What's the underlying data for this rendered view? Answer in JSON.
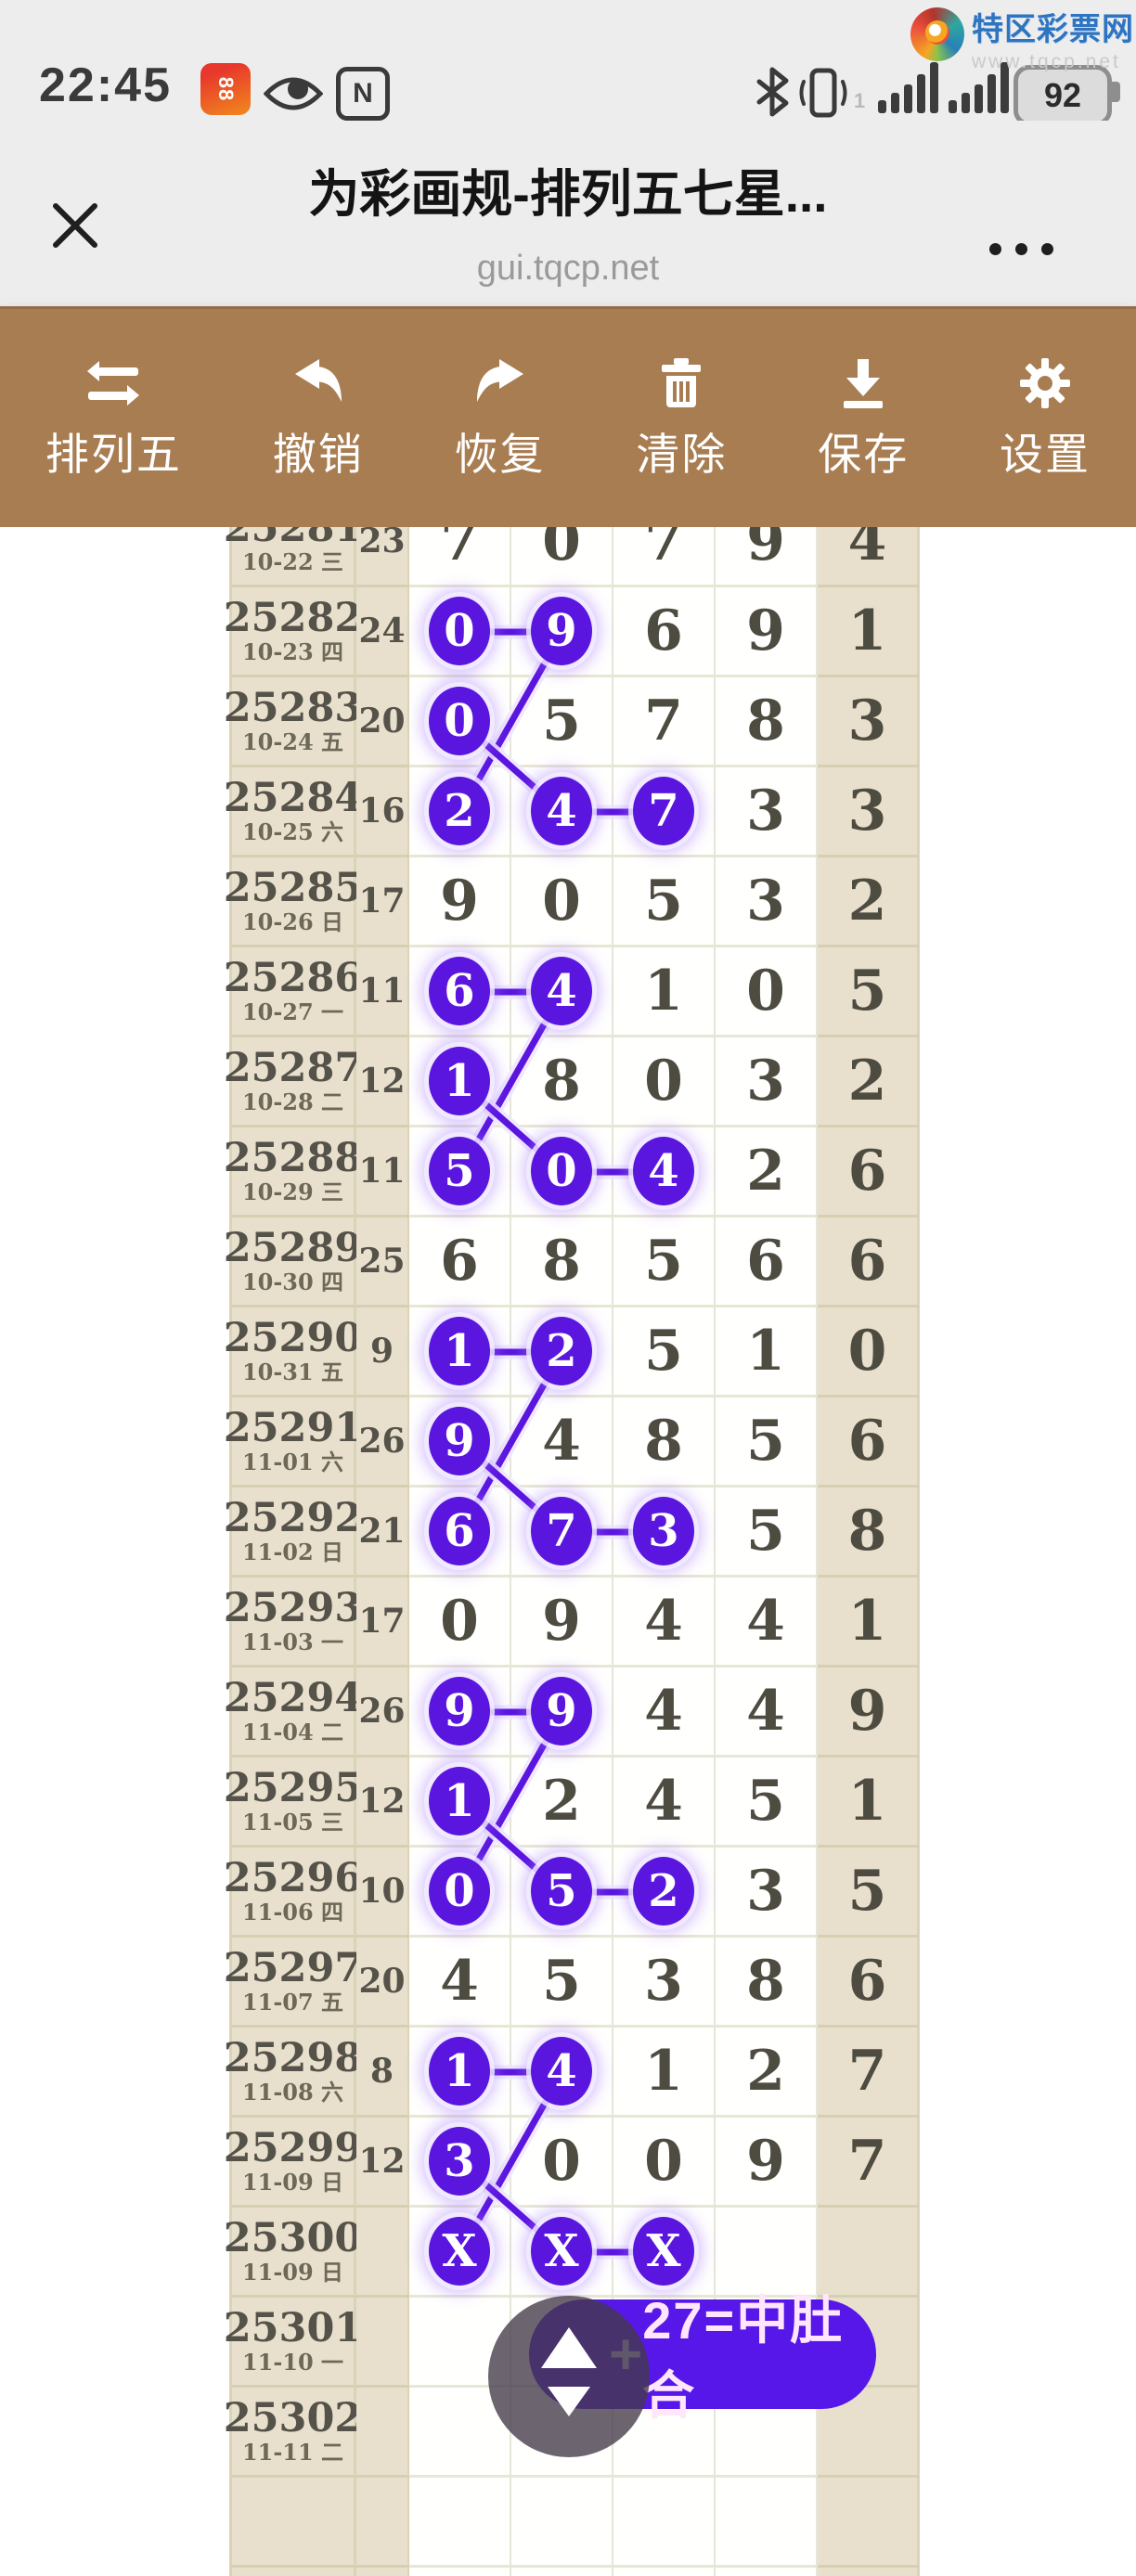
{
  "status_bar": {
    "time": "22:45",
    "battery_percent": "92",
    "sim_hint": "1",
    "nfc_label": "N",
    "app_badge_label": "88"
  },
  "watermark": {
    "site_name": "特区彩票网",
    "site_url": "www.tqcp.net"
  },
  "title_bar": {
    "title": "为彩画规-排列五七星...",
    "domain": "gui.tqcp.net"
  },
  "toolbar": {
    "items": [
      {
        "label": "排列五",
        "icon": "swap-icon"
      },
      {
        "label": "撤销",
        "icon": "undo-icon"
      },
      {
        "label": "恢复",
        "icon": "redo-icon"
      },
      {
        "label": "清除",
        "icon": "trash-icon"
      },
      {
        "label": "保存",
        "icon": "save-icon"
      },
      {
        "label": "设置",
        "icon": "gear-icon"
      }
    ]
  },
  "colors": {
    "accent_purple": "#5a15df",
    "pill_purple": "#5617e8",
    "toolbar_brown": "#a97d52",
    "beige": "#e8e0cd"
  },
  "chart_data": {
    "type": "table",
    "description": "排列五 lottery draw chart; each row = draw period, sum/count column, five result digits; purple circles mark selected digits joined by lines",
    "columns": [
      "期号/日期",
      "和值",
      "位1",
      "位2",
      "位3",
      "位4",
      "位5"
    ],
    "rows": [
      {
        "period": "25281",
        "date": "10-22 三",
        "count": "23",
        "digits": [
          "7",
          "0",
          "7",
          "9",
          "4"
        ],
        "circles": []
      },
      {
        "period": "25282",
        "date": "10-23 四",
        "count": "24",
        "digits": [
          "0",
          "9",
          "6",
          "9",
          "1"
        ],
        "circles": [
          0,
          1
        ]
      },
      {
        "period": "25283",
        "date": "10-24 五",
        "count": "20",
        "digits": [
          "0",
          "5",
          "7",
          "8",
          "3"
        ],
        "circles": [
          0
        ]
      },
      {
        "period": "25284",
        "date": "10-25 六",
        "count": "16",
        "digits": [
          "2",
          "4",
          "7",
          "3",
          "3"
        ],
        "circles": [
          0,
          1,
          2
        ]
      },
      {
        "period": "25285",
        "date": "10-26 日",
        "count": "17",
        "digits": [
          "9",
          "0",
          "5",
          "3",
          "2"
        ],
        "circles": []
      },
      {
        "period": "25286",
        "date": "10-27 一",
        "count": "11",
        "digits": [
          "6",
          "4",
          "1",
          "0",
          "5"
        ],
        "circles": [
          0,
          1
        ]
      },
      {
        "period": "25287",
        "date": "10-28 二",
        "count": "12",
        "digits": [
          "1",
          "8",
          "0",
          "3",
          "2"
        ],
        "circles": [
          0
        ]
      },
      {
        "period": "25288",
        "date": "10-29 三",
        "count": "11",
        "digits": [
          "5",
          "0",
          "4",
          "2",
          "6"
        ],
        "circles": [
          0,
          1,
          2
        ]
      },
      {
        "period": "25289",
        "date": "10-30 四",
        "count": "25",
        "digits": [
          "6",
          "8",
          "5",
          "6",
          "6"
        ],
        "circles": []
      },
      {
        "period": "25290",
        "date": "10-31 五",
        "count": "9",
        "digits": [
          "1",
          "2",
          "5",
          "1",
          "0"
        ],
        "circles": [
          0,
          1
        ]
      },
      {
        "period": "25291",
        "date": "11-01 六",
        "count": "26",
        "digits": [
          "9",
          "4",
          "8",
          "5",
          "6"
        ],
        "circles": [
          0
        ]
      },
      {
        "period": "25292",
        "date": "11-02 日",
        "count": "21",
        "digits": [
          "6",
          "7",
          "3",
          "5",
          "8"
        ],
        "circles": [
          0,
          1,
          2
        ]
      },
      {
        "period": "25293",
        "date": "11-03 一",
        "count": "17",
        "digits": [
          "0",
          "9",
          "4",
          "4",
          "1"
        ],
        "circles": []
      },
      {
        "period": "25294",
        "date": "11-04 二",
        "count": "26",
        "digits": [
          "9",
          "9",
          "4",
          "4",
          "9"
        ],
        "circles": [
          0,
          1
        ]
      },
      {
        "period": "25295",
        "date": "11-05 三",
        "count": "12",
        "digits": [
          "1",
          "2",
          "4",
          "5",
          "1"
        ],
        "circles": [
          0
        ]
      },
      {
        "period": "25296",
        "date": "11-06 四",
        "count": "10",
        "digits": [
          "0",
          "5",
          "2",
          "3",
          "5"
        ],
        "circles": [
          0,
          1,
          2
        ]
      },
      {
        "period": "25297",
        "date": "11-07 五",
        "count": "20",
        "digits": [
          "4",
          "5",
          "3",
          "8",
          "6"
        ],
        "circles": []
      },
      {
        "period": "25298",
        "date": "11-08 六",
        "count": "8",
        "digits": [
          "1",
          "4",
          "1",
          "2",
          "7"
        ],
        "circles": [
          0,
          1
        ]
      },
      {
        "period": "25299",
        "date": "11-09 日",
        "count": "12",
        "digits": [
          "3",
          "0",
          "0",
          "9",
          "7"
        ],
        "circles": [
          0
        ]
      },
      {
        "period": "25300",
        "date": "11-09 日",
        "count": "",
        "digits": [
          "X",
          "X",
          "X",
          "",
          ""
        ],
        "circles": [
          0,
          1,
          2
        ]
      },
      {
        "period": "25301",
        "date": "11-10 一",
        "count": "",
        "digits": [
          "",
          "",
          "",
          "",
          ""
        ],
        "circles": []
      },
      {
        "period": "25302",
        "date": "11-11 二",
        "count": "",
        "digits": [
          "",
          "",
          "",
          "",
          ""
        ],
        "circles": []
      }
    ],
    "links": [
      {
        "from": [
          1,
          0
        ],
        "to": [
          1,
          1
        ]
      },
      {
        "from": [
          1,
          1
        ],
        "to": [
          3,
          0
        ]
      },
      {
        "from": [
          2,
          0
        ],
        "to": [
          3,
          1
        ]
      },
      {
        "from": [
          3,
          1
        ],
        "to": [
          3,
          2
        ]
      },
      {
        "from": [
          5,
          0
        ],
        "to": [
          5,
          1
        ]
      },
      {
        "from": [
          5,
          1
        ],
        "to": [
          7,
          0
        ]
      },
      {
        "from": [
          6,
          0
        ],
        "to": [
          7,
          1
        ]
      },
      {
        "from": [
          7,
          1
        ],
        "to": [
          7,
          2
        ]
      },
      {
        "from": [
          9,
          0
        ],
        "to": [
          9,
          1
        ]
      },
      {
        "from": [
          9,
          1
        ],
        "to": [
          11,
          0
        ]
      },
      {
        "from": [
          10,
          0
        ],
        "to": [
          11,
          1
        ]
      },
      {
        "from": [
          11,
          1
        ],
        "to": [
          11,
          2
        ]
      },
      {
        "from": [
          13,
          0
        ],
        "to": [
          13,
          1
        ]
      },
      {
        "from": [
          13,
          1
        ],
        "to": [
          15,
          0
        ]
      },
      {
        "from": [
          14,
          0
        ],
        "to": [
          15,
          1
        ]
      },
      {
        "from": [
          15,
          1
        ],
        "to": [
          15,
          2
        ]
      },
      {
        "from": [
          17,
          0
        ],
        "to": [
          17,
          1
        ]
      },
      {
        "from": [
          17,
          1
        ],
        "to": [
          19,
          0
        ]
      },
      {
        "from": [
          18,
          0
        ],
        "to": [
          19,
          1
        ]
      },
      {
        "from": [
          19,
          1
        ],
        "to": [
          19,
          2
        ]
      }
    ]
  },
  "widget": {
    "plus": "+",
    "label": "27=中肚合"
  }
}
